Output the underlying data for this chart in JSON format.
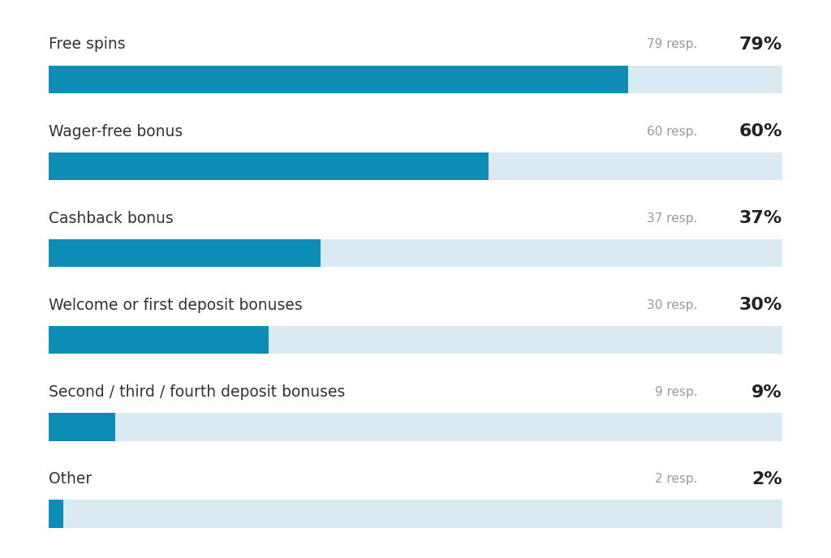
{
  "categories": [
    "Free spins",
    "Wager-free bonus",
    "Cashback bonus",
    "Welcome or first deposit bonuses",
    "Second / third / fourth deposit bonuses",
    "Other"
  ],
  "percentages": [
    79,
    60,
    37,
    30,
    9,
    2
  ],
  "resp_labels": [
    "79 resp.",
    "60 resp.",
    "37 resp.",
    "30 resp.",
    "9 resp.",
    "2 resp."
  ],
  "pct_labels": [
    "79%",
    "60%",
    "37%",
    "30%",
    "9%",
    "2%"
  ],
  "bar_color": "#0d8db5",
  "bg_bar_color": "#daeaf2",
  "label_color": "#333333",
  "resp_color": "#999999",
  "pct_color": "#222222",
  "background_color": "#ffffff",
  "bar_height": 0.32,
  "label_fontsize": 13.5,
  "resp_fontsize": 11,
  "pct_fontsize": 16
}
